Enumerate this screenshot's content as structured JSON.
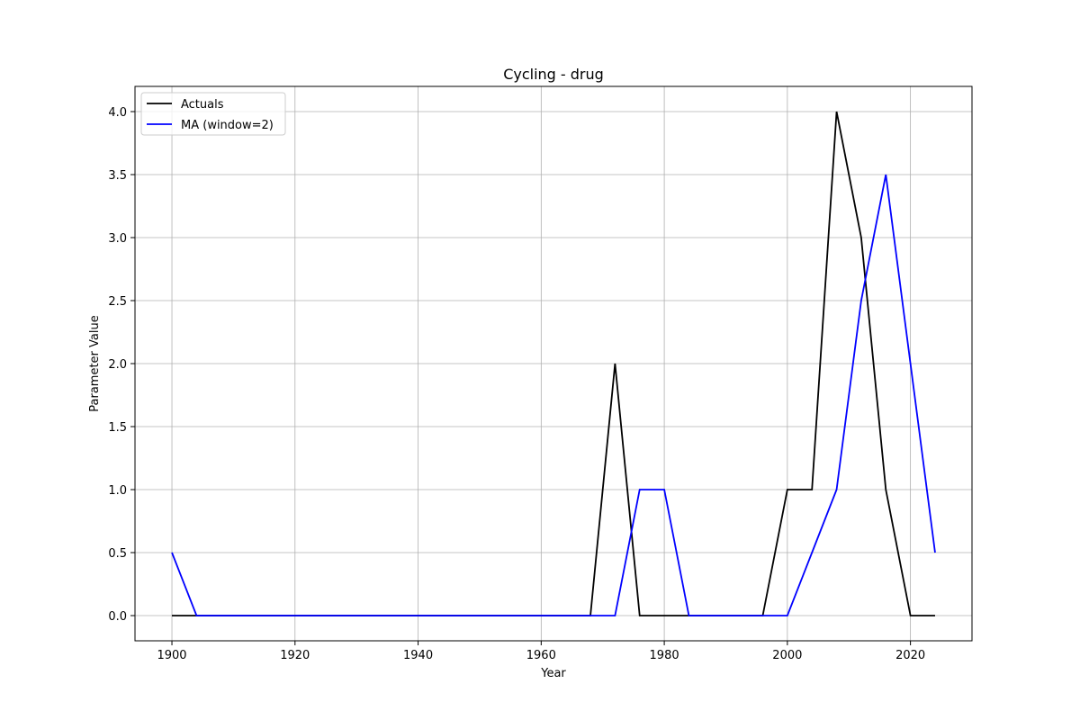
{
  "chart_data": {
    "type": "line",
    "title": "Cycling - drug",
    "xlabel": "Year",
    "ylabel": "Parameter Value",
    "xlim": [
      1894,
      2030
    ],
    "ylim": [
      -0.2,
      4.2
    ],
    "xticks": [
      1900,
      1920,
      1940,
      1960,
      1980,
      2000,
      2020
    ],
    "yticks": [
      0.0,
      0.5,
      1.0,
      1.5,
      2.0,
      2.5,
      3.0,
      3.5,
      4.0
    ],
    "xtick_labels": [
      "1900",
      "1920",
      "1940",
      "1960",
      "1980",
      "2000",
      "2020"
    ],
    "ytick_labels": [
      "0.0",
      "0.5",
      "1.0",
      "1.5",
      "2.0",
      "2.5",
      "3.0",
      "3.5",
      "4.0"
    ],
    "grid": true,
    "legend_position": "top-left",
    "x": [
      1900,
      1904,
      1908,
      1912,
      1916,
      1920,
      1924,
      1928,
      1932,
      1936,
      1940,
      1944,
      1948,
      1952,
      1956,
      1960,
      1964,
      1968,
      1972,
      1976,
      1980,
      1984,
      1988,
      1992,
      1996,
      2000,
      2004,
      2008,
      2012,
      2016,
      2020,
      2024
    ],
    "series": [
      {
        "name": "Actuals",
        "color": "#000000",
        "values": [
          0,
          0,
          0,
          0,
          0,
          0,
          0,
          0,
          0,
          0,
          0,
          0,
          0,
          0,
          0,
          0,
          0,
          0,
          2,
          0,
          0,
          0,
          0,
          0,
          0,
          1,
          1,
          4,
          3,
          1,
          0,
          0
        ]
      },
      {
        "name": "MA (window=2)",
        "color": "#0000ff",
        "values": [
          0.5,
          0,
          0,
          0,
          0,
          0,
          0,
          0,
          0,
          0,
          0,
          0,
          0,
          0,
          0,
          0,
          0,
          0,
          0,
          1,
          1,
          0,
          0,
          0,
          0,
          0,
          0.5,
          1,
          2.5,
          3.5,
          2,
          0.5
        ]
      }
    ]
  }
}
